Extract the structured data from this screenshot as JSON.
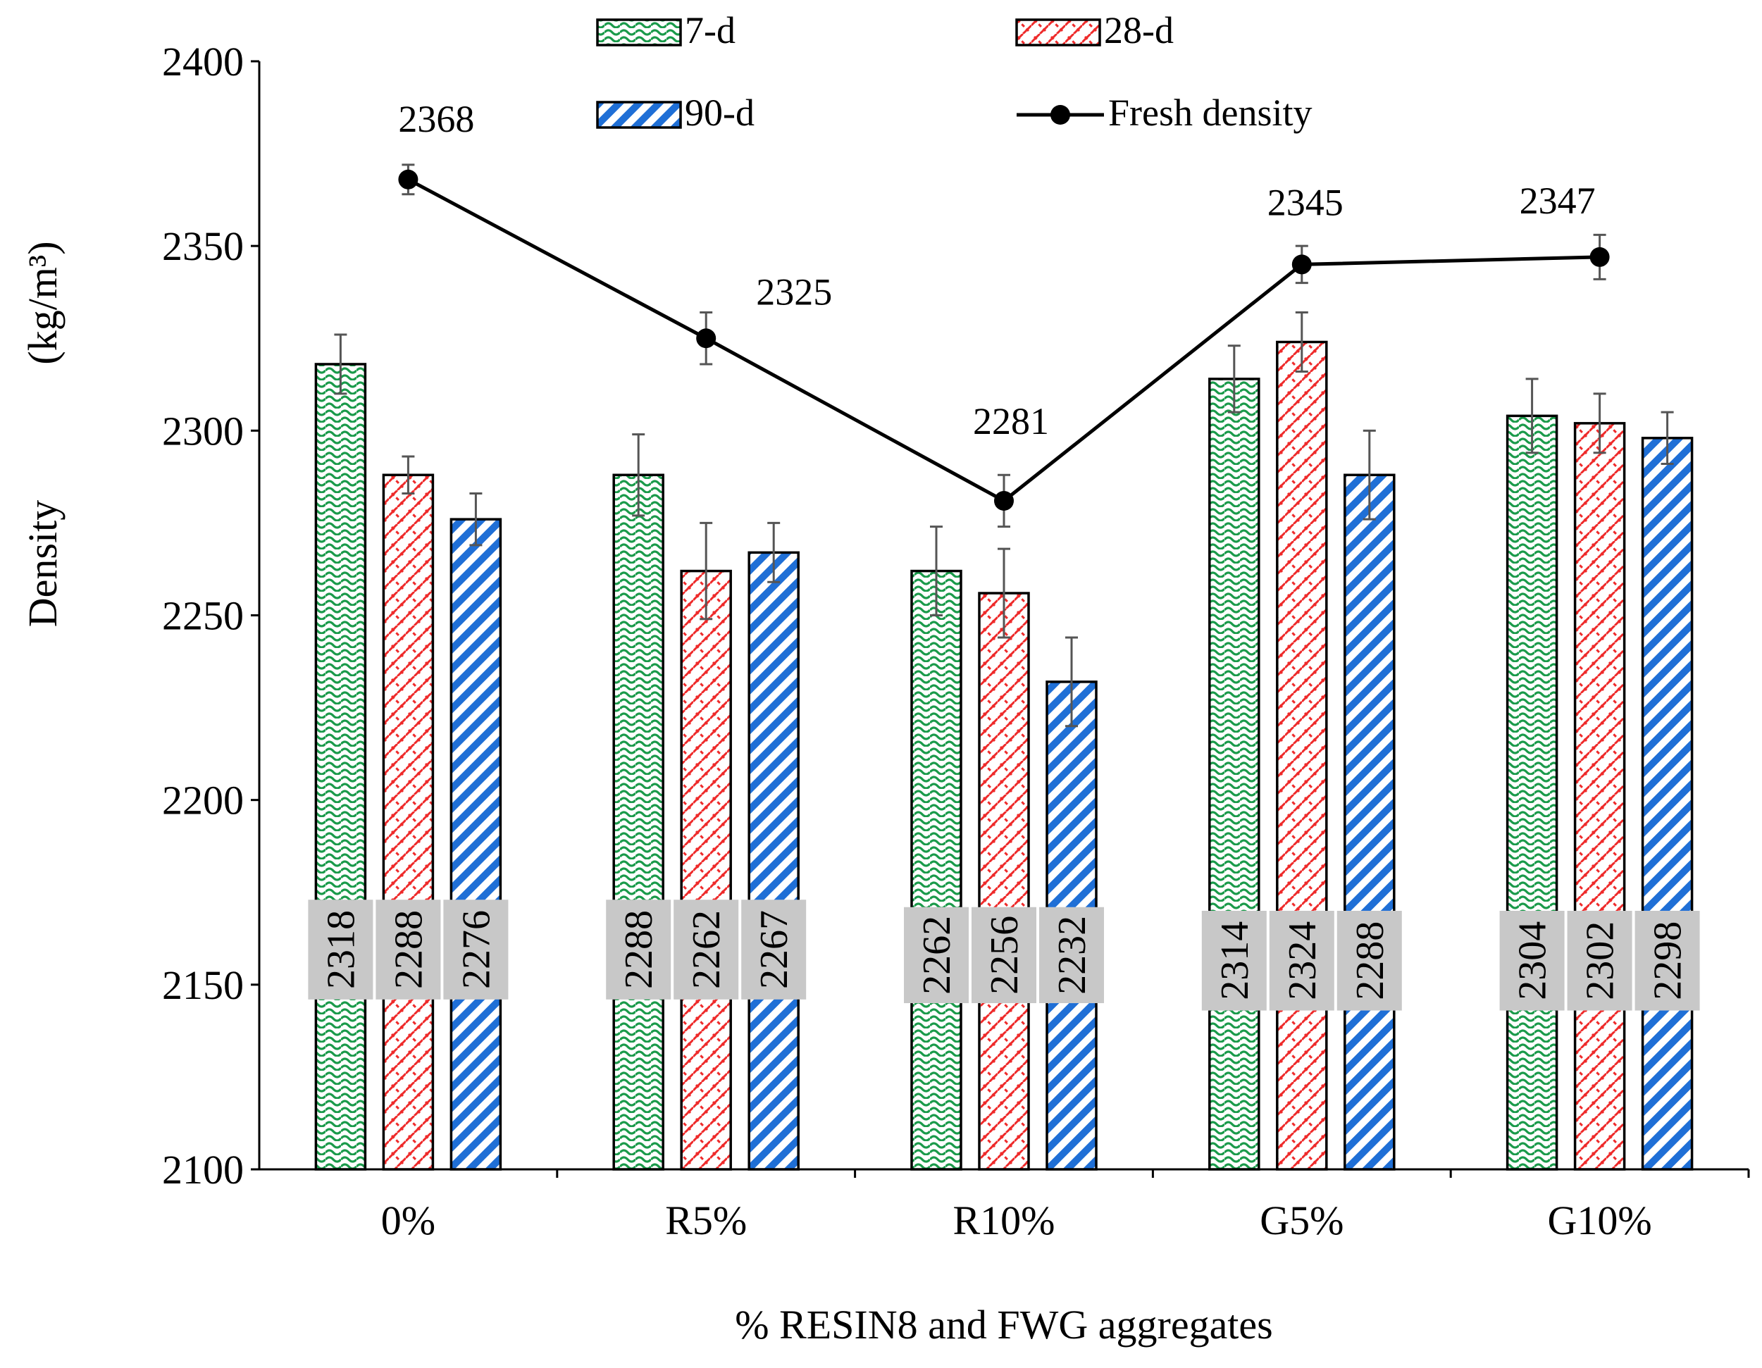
{
  "chart_data": {
    "type": "bar",
    "title": "",
    "xlabel": "% RESIN8 and FWG aggregates",
    "ylabel_line1": "(kg/m³)",
    "ylabel_line2": "Density",
    "ylim": [
      2100,
      2400
    ],
    "yticks": [
      "2100",
      "2150",
      "2200",
      "2250",
      "2300",
      "2350",
      "2400"
    ],
    "categories": [
      "0%",
      "R5%",
      "R10%",
      "G5%",
      "G10%"
    ],
    "series": [
      {
        "name": "7-d",
        "values": [
          2318,
          2288,
          2262,
          2314,
          2304
        ],
        "errors": [
          8,
          11,
          12,
          9,
          10
        ],
        "labels": [
          "2318",
          "2288",
          "2262",
          "2314",
          "2304"
        ],
        "pattern": "wave",
        "color": "#1a9a4a"
      },
      {
        "name": "28-d",
        "values": [
          2288,
          2262,
          2256,
          2324,
          2302
        ],
        "errors": [
          5,
          13,
          12,
          8,
          8
        ],
        "labels": [
          "2288",
          "2262",
          "2256",
          "2324",
          "2302"
        ],
        "pattern": "brick",
        "color": "#ee2a2a"
      },
      {
        "name": "90-d",
        "values": [
          2276,
          2267,
          2232,
          2288,
          2298
        ],
        "errors": [
          7,
          8,
          12,
          12,
          7
        ],
        "labels": [
          "2276",
          "2267",
          "2232",
          "2288",
          "2298"
        ],
        "pattern": "diagonal",
        "color": "#1f6fd6"
      }
    ],
    "line_series": {
      "name": "Fresh density",
      "values": [
        2368,
        2325,
        2281,
        2345,
        2347
      ],
      "errors": [
        4,
        7,
        7,
        5,
        6
      ],
      "labels": [
        "2368",
        "2325",
        "2281",
        "2345",
        "2347"
      ],
      "color": "#000000"
    },
    "legend": {
      "position": "top"
    }
  }
}
